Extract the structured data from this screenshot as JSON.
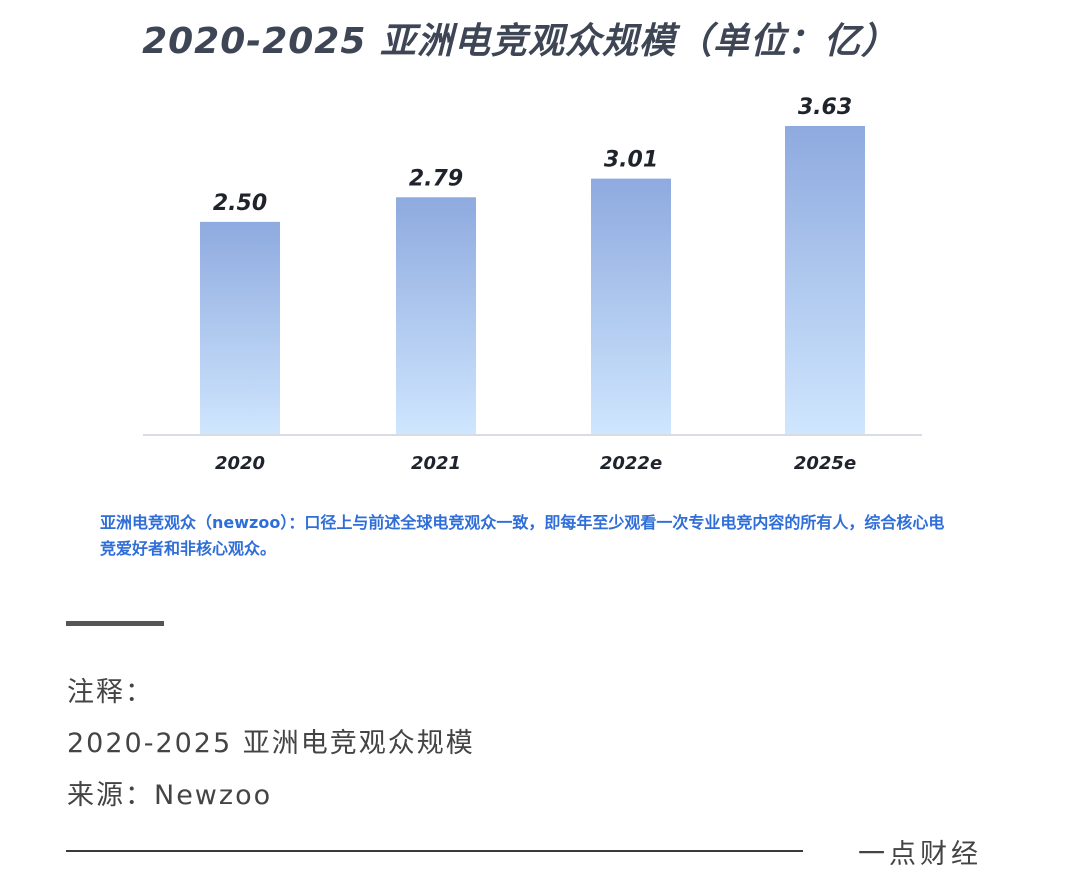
{
  "chart_data": {
    "type": "bar",
    "title": "2020-2025 亚洲电竞观众规模（单位：亿）",
    "categories": [
      "2020",
      "2021",
      "2022e",
      "2025e"
    ],
    "values": [
      2.5,
      2.79,
      3.01,
      3.63
    ],
    "value_labels": [
      "2.50",
      "2.79",
      "3.01",
      "3.63"
    ],
    "ylim": [
      0,
      3.63
    ],
    "grid": false,
    "legend": "none",
    "colors": {
      "bar_top": "#8eaadf",
      "bar_bottom": "#cfe6fe",
      "axis": "#d9dde3"
    },
    "note": "亚洲电竞观众（newzoo）：口径上与前述全球电竞观众一致，即每年至少观看一次专业电竞内容的所有人，综合核心电竞爱好者和非核心观众。"
  },
  "caption": {
    "label": "注释：",
    "text": "2020-2025 亚洲电竞观众规模",
    "source": "来源：Newzoo"
  },
  "brand": "一点财经"
}
